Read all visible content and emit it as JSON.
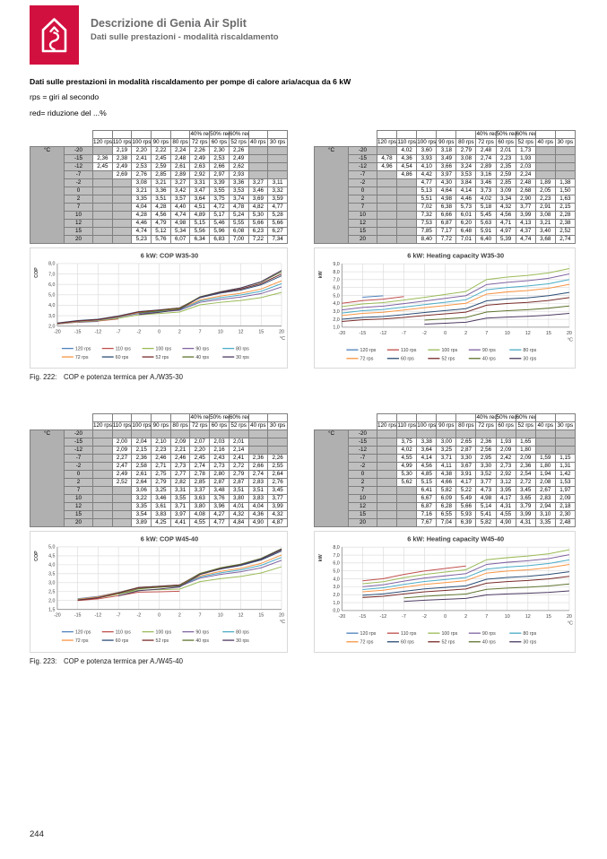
{
  "header": {
    "title": "Descrizione di Genia Air Split",
    "subtitle": "Dati sulle prestazioni - modalità riscaldamento",
    "logo_color": "#d2103f",
    "logo_icon": "house-arrow-icon"
  },
  "intro": {
    "line1": "Dati sulle prestazioni in modalità riscaldamento per pompe di calore aria/acqua da 6 kW",
    "line2": "rps = giri al secondo",
    "line3": "red= riduzione del ...%"
  },
  "tables_common": {
    "unit_label": "°C",
    "red_headers": [
      "",
      "",
      "",
      "",
      "",
      "40% red",
      "50% red",
      "60% red",
      "",
      ""
    ]
  },
  "figures": [
    {
      "caption_label": "Fig. 222:",
      "caption_text": "COP e potenza termica per A./W35-30"
    },
    {
      "caption_label": "Fig. 223:",
      "caption_text": "COP e potenza termica per A./W45-40"
    }
  ],
  "page_number": "244",
  "chart_data": [
    {
      "id": "cop-w35-30",
      "type": "line",
      "title": "6 kW: COP W35-30",
      "ylabel": "COP",
      "xlabel": "°C",
      "grid": true,
      "legend_position": "bottom",
      "x": [
        -20,
        -15,
        -12,
        -7,
        -2,
        0,
        2,
        7,
        10,
        12,
        15,
        20
      ],
      "ylim": [
        2.0,
        8.0
      ],
      "ytick_step": 1.0,
      "series": [
        {
          "name": "120 rps",
          "color": "#4f81bd",
          "values": [
            null,
            2.36,
            2.45,
            null,
            null,
            null,
            null,
            null,
            null,
            null,
            null,
            null
          ]
        },
        {
          "name": "110 rps",
          "color": "#c0504d",
          "values": [
            2.19,
            2.38,
            2.49,
            2.69,
            null,
            null,
            null,
            null,
            null,
            null,
            null,
            null
          ]
        },
        {
          "name": "100 rps",
          "color": "#9bbb59",
          "values": [
            2.2,
            2.41,
            2.53,
            2.76,
            3.08,
            3.21,
            3.35,
            4.04,
            4.28,
            4.46,
            4.74,
            5.23
          ]
        },
        {
          "name": "90 rps",
          "color": "#8064a2",
          "values": [
            2.22,
            2.45,
            2.59,
            2.85,
            3.21,
            3.36,
            3.51,
            4.28,
            4.56,
            4.79,
            5.12,
            5.76
          ]
        },
        {
          "name": "80 rps",
          "color": "#4bacc6",
          "values": [
            2.24,
            2.48,
            2.61,
            2.89,
            3.27,
            3.42,
            3.57,
            4.4,
            4.74,
            4.98,
            5.34,
            6.07
          ]
        },
        {
          "name": "72 rps",
          "color": "#f79646",
          "values": [
            2.26,
            2.49,
            2.63,
            2.92,
            3.31,
            3.47,
            3.64,
            4.51,
            4.89,
            5.15,
            5.56,
            6.34
          ]
        },
        {
          "name": "60 rps",
          "color": "#2c4d75",
          "values": [
            2.3,
            2.53,
            2.66,
            2.97,
            3.39,
            3.55,
            3.75,
            4.72,
            5.17,
            5.46,
            5.96,
            6.83
          ]
        },
        {
          "name": "52 rps",
          "color": "#772c2a",
          "values": [
            2.26,
            2.49,
            2.62,
            2.93,
            3.36,
            3.53,
            3.74,
            4.78,
            5.24,
            5.55,
            6.08,
            7.0
          ]
        },
        {
          "name": "40 rps",
          "color": "#5f7530",
          "values": [
            null,
            null,
            null,
            null,
            3.27,
            3.46,
            3.69,
            4.82,
            5.3,
            5.66,
            6.23,
            7.22
          ]
        },
        {
          "name": "30 rps",
          "color": "#4d3b62",
          "values": [
            null,
            null,
            null,
            null,
            3.11,
            3.32,
            3.59,
            4.77,
            5.28,
            5.66,
            6.27,
            7.34
          ]
        }
      ]
    },
    {
      "id": "capacity-w35-30",
      "type": "line",
      "title": "6 kW: Heating capacity W35-30",
      "ylabel": "kW",
      "xlabel": "°C",
      "grid": true,
      "legend_position": "bottom",
      "x": [
        -20,
        -15,
        -12,
        -7,
        -2,
        0,
        2,
        7,
        10,
        12,
        15,
        20
      ],
      "ylim": [
        1.0,
        9.0
      ],
      "ytick_step": 1.0,
      "series": [
        {
          "name": "120 rps",
          "color": "#4f81bd",
          "values": [
            null,
            4.78,
            4.96,
            null,
            null,
            null,
            null,
            null,
            null,
            null,
            null,
            null
          ]
        },
        {
          "name": "110 rps",
          "color": "#c0504d",
          "values": [
            4.02,
            4.36,
            4.54,
            4.86,
            null,
            null,
            null,
            null,
            null,
            null,
            null,
            null
          ]
        },
        {
          "name": "100 rps",
          "color": "#9bbb59",
          "values": [
            3.6,
            3.93,
            4.1,
            4.42,
            4.77,
            5.13,
            5.51,
            7.02,
            7.32,
            7.53,
            7.85,
            8.4
          ]
        },
        {
          "name": "90 rps",
          "color": "#8064a2",
          "values": [
            3.18,
            3.49,
            3.66,
            3.97,
            4.3,
            4.64,
            4.98,
            6.38,
            6.66,
            6.87,
            7.17,
            7.72
          ]
        },
        {
          "name": "80 rps",
          "color": "#4bacc6",
          "values": [
            2.79,
            3.08,
            3.24,
            3.53,
            3.84,
            4.14,
            4.46,
            5.73,
            6.01,
            6.2,
            6.48,
            7.01
          ]
        },
        {
          "name": "72 rps",
          "color": "#f79646",
          "values": [
            2.48,
            2.74,
            2.89,
            3.16,
            3.46,
            3.73,
            4.02,
            5.18,
            5.45,
            5.63,
            5.91,
            6.4
          ]
        },
        {
          "name": "60 rps",
          "color": "#2c4d75",
          "values": [
            2.01,
            2.23,
            2.35,
            2.59,
            2.85,
            3.09,
            3.34,
            4.32,
            4.56,
            4.71,
            4.97,
            5.39
          ]
        },
        {
          "name": "52 rps",
          "color": "#772c2a",
          "values": [
            1.73,
            1.93,
            2.03,
            2.24,
            2.48,
            2.68,
            2.9,
            3.77,
            3.99,
            4.13,
            4.37,
            4.74
          ]
        },
        {
          "name": "40 rps",
          "color": "#5f7530",
          "values": [
            null,
            null,
            null,
            null,
            1.89,
            2.05,
            2.23,
            2.91,
            3.08,
            3.21,
            3.4,
            3.68
          ]
        },
        {
          "name": "30 rps",
          "color": "#4d3b62",
          "values": [
            null,
            null,
            null,
            null,
            1.38,
            1.5,
            1.63,
            2.15,
            2.28,
            2.38,
            2.52,
            2.74
          ]
        }
      ]
    },
    {
      "id": "cop-w45-40",
      "type": "line",
      "title": "6 kW: COP W45-40",
      "ylabel": "COP",
      "xlabel": "°C",
      "grid": true,
      "legend_position": "bottom",
      "x": [
        -20,
        -15,
        -12,
        -7,
        -2,
        0,
        2,
        7,
        10,
        12,
        15,
        20
      ],
      "ylim": [
        1.5,
        5.0
      ],
      "ytick_step": 0.5,
      "series": [
        {
          "name": "120 rps",
          "color": "#4f81bd",
          "values": [
            null,
            null,
            null,
            null,
            null,
            null,
            null,
            null,
            null,
            null,
            null,
            null
          ]
        },
        {
          "name": "110 rps",
          "color": "#c0504d",
          "values": [
            null,
            2.0,
            2.09,
            2.27,
            2.47,
            2.49,
            2.52,
            null,
            null,
            null,
            null,
            null
          ]
        },
        {
          "name": "100 rps",
          "color": "#9bbb59",
          "values": [
            null,
            2.04,
            2.15,
            2.36,
            2.58,
            2.61,
            2.64,
            3.06,
            3.22,
            3.35,
            3.54,
            3.89
          ]
        },
        {
          "name": "90 rps",
          "color": "#8064a2",
          "values": [
            null,
            2.1,
            2.23,
            2.46,
            2.71,
            2.75,
            2.79,
            3.25,
            3.46,
            3.61,
            3.83,
            4.25
          ]
        },
        {
          "name": "80 rps",
          "color": "#4bacc6",
          "values": [
            null,
            2.09,
            2.21,
            2.46,
            2.73,
            2.77,
            2.82,
            3.31,
            3.55,
            3.71,
            3.97,
            4.41
          ]
        },
        {
          "name": "72 rps",
          "color": "#f79646",
          "values": [
            null,
            2.07,
            2.2,
            2.45,
            2.74,
            2.78,
            2.85,
            3.37,
            3.63,
            3.8,
            4.08,
            4.55
          ]
        },
        {
          "name": "60 rps",
          "color": "#2c4d75",
          "values": [
            null,
            2.03,
            2.16,
            2.43,
            2.73,
            2.8,
            2.87,
            3.48,
            3.76,
            3.96,
            4.27,
            4.77
          ]
        },
        {
          "name": "52 rps",
          "color": "#772c2a",
          "values": [
            null,
            2.01,
            2.14,
            2.41,
            2.72,
            2.79,
            2.87,
            3.51,
            3.8,
            4.01,
            4.32,
            4.84
          ]
        },
        {
          "name": "40 rps",
          "color": "#5f7530",
          "values": [
            null,
            null,
            null,
            2.36,
            2.66,
            2.74,
            2.83,
            3.51,
            3.83,
            4.04,
            4.36,
            4.9
          ]
        },
        {
          "name": "30 rps",
          "color": "#4d3b62",
          "values": [
            null,
            null,
            null,
            2.26,
            2.55,
            2.64,
            2.76,
            3.45,
            3.77,
            3.99,
            4.32,
            4.87
          ]
        }
      ]
    },
    {
      "id": "capacity-w45-40",
      "type": "line",
      "title": "6 kW: Heating capacity W45-40",
      "ylabel": "kW",
      "xlabel": "°C",
      "grid": true,
      "legend_position": "bottom",
      "x": [
        -20,
        -15,
        -12,
        -7,
        -2,
        0,
        2,
        7,
        10,
        12,
        15,
        20
      ],
      "ylim": [
        0.0,
        8.0
      ],
      "ytick_step": 1.0,
      "series": [
        {
          "name": "120 rps",
          "color": "#4f81bd",
          "values": [
            null,
            null,
            null,
            null,
            null,
            null,
            null,
            null,
            null,
            null,
            null,
            null
          ]
        },
        {
          "name": "110 rps",
          "color": "#c0504d",
          "values": [
            null,
            3.75,
            4.02,
            4.55,
            4.99,
            5.3,
            5.62,
            null,
            null,
            null,
            null,
            null
          ]
        },
        {
          "name": "100 rps",
          "color": "#9bbb59",
          "values": [
            null,
            3.38,
            3.64,
            4.14,
            4.56,
            4.85,
            5.15,
            6.41,
            6.67,
            6.87,
            7.16,
            7.67
          ]
        },
        {
          "name": "90 rps",
          "color": "#8064a2",
          "values": [
            null,
            3.0,
            3.25,
            3.71,
            4.11,
            4.38,
            4.66,
            5.82,
            6.09,
            6.28,
            6.55,
            7.04
          ]
        },
        {
          "name": "80 rps",
          "color": "#4bacc6",
          "values": [
            null,
            2.65,
            2.87,
            3.3,
            3.67,
            3.91,
            4.17,
            5.22,
            5.49,
            5.66,
            5.93,
            6.39
          ]
        },
        {
          "name": "72 rps",
          "color": "#f79646",
          "values": [
            null,
            2.36,
            2.56,
            2.95,
            3.3,
            3.52,
            3.77,
            4.73,
            4.98,
            5.14,
            5.41,
            5.82
          ]
        },
        {
          "name": "60 rps",
          "color": "#2c4d75",
          "values": [
            null,
            1.93,
            2.09,
            2.42,
            2.73,
            2.92,
            3.12,
            3.95,
            4.17,
            4.31,
            4.55,
            4.9
          ]
        },
        {
          "name": "52 rps",
          "color": "#772c2a",
          "values": [
            null,
            1.65,
            1.8,
            2.09,
            2.36,
            2.54,
            2.72,
            3.45,
            3.65,
            3.79,
            3.99,
            4.31
          ]
        },
        {
          "name": "40 rps",
          "color": "#5f7530",
          "values": [
            null,
            null,
            null,
            1.59,
            1.8,
            1.94,
            2.08,
            2.67,
            2.83,
            2.94,
            3.1,
            3.35
          ]
        },
        {
          "name": "30 rps",
          "color": "#4d3b62",
          "values": [
            null,
            null,
            null,
            1.15,
            1.31,
            1.42,
            1.53,
            1.97,
            2.09,
            2.18,
            2.3,
            2.48
          ]
        }
      ]
    }
  ]
}
